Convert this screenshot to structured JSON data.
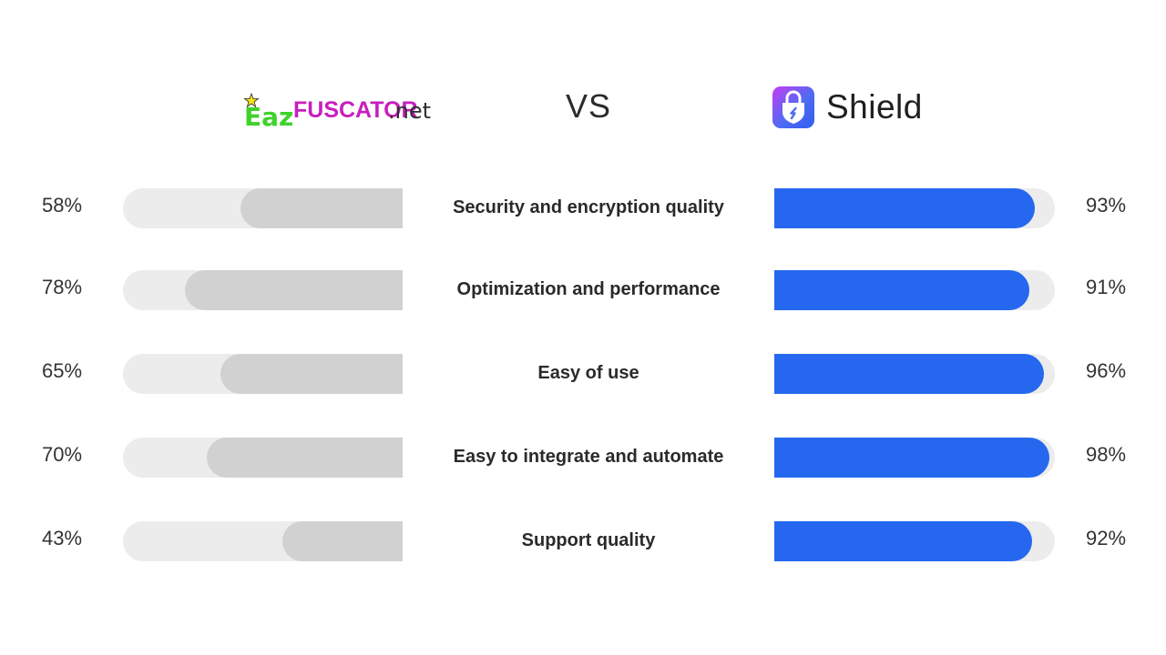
{
  "header": {
    "left_logo": {
      "text_part1": "Eaz",
      "text_part2": "FUSCATOR",
      "text_part3": ".net"
    },
    "vs_label": "VS",
    "right_brand": {
      "name": "Shield",
      "icon": "shield-lock-icon"
    }
  },
  "colors": {
    "left_track": "#ececec",
    "left_fill": "#d1d1d1",
    "right_fill": "#2568ef",
    "eaz_green": "#3fd22a",
    "eaz_magenta": "#c81ebd"
  },
  "chart_data": {
    "type": "bar",
    "categories": [
      "Security and encryption quality",
      "Optimization and performance",
      "Easy of use",
      "Easy to integrate and automate",
      "Support quality"
    ],
    "series": [
      {
        "name": "EazFUSCATOR.net",
        "values": [
          58,
          78,
          65,
          70,
          43
        ]
      },
      {
        "name": "Shield",
        "values": [
          93,
          91,
          96,
          98,
          92
        ]
      }
    ],
    "labels_left": [
      "58%",
      "78%",
      "65%",
      "70%",
      "43%"
    ],
    "labels_right": [
      "93%",
      "91%",
      "96%",
      "98%",
      "92%"
    ],
    "ylim": [
      0,
      100
    ]
  }
}
